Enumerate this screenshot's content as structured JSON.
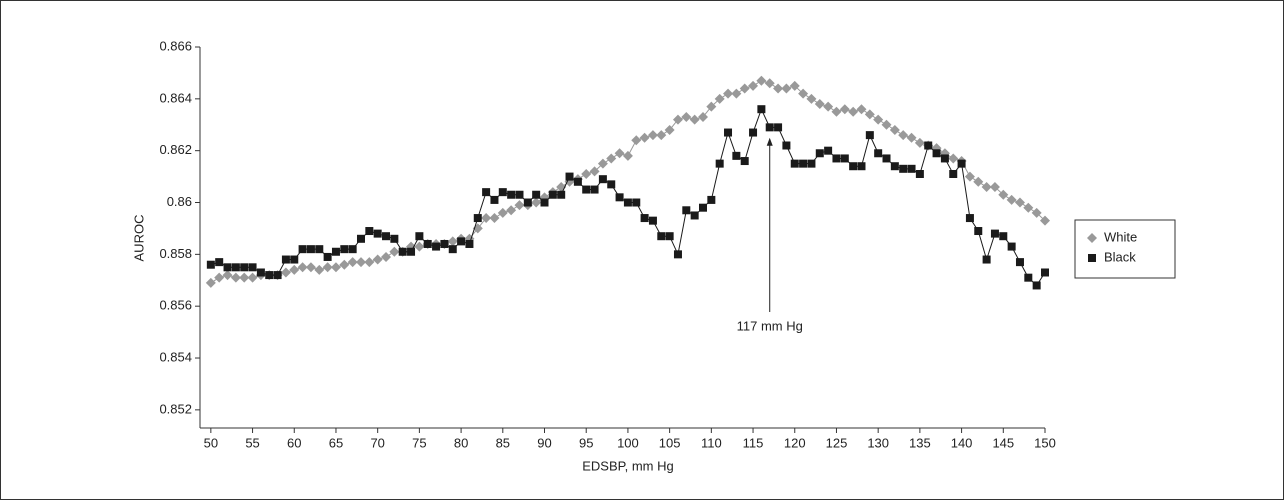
{
  "chart_data": {
    "type": "line",
    "x": [
      50,
      51,
      52,
      53,
      54,
      55,
      56,
      57,
      58,
      59,
      60,
      61,
      62,
      63,
      64,
      65,
      66,
      67,
      68,
      69,
      70,
      71,
      72,
      73,
      74,
      75,
      76,
      77,
      78,
      79,
      80,
      81,
      82,
      83,
      84,
      85,
      86,
      87,
      88,
      89,
      90,
      91,
      92,
      93,
      94,
      95,
      96,
      97,
      98,
      99,
      100,
      101,
      102,
      103,
      104,
      105,
      106,
      107,
      108,
      109,
      110,
      111,
      112,
      113,
      114,
      115,
      116,
      117,
      118,
      119,
      120,
      121,
      122,
      123,
      124,
      125,
      126,
      127,
      128,
      129,
      130,
      131,
      132,
      133,
      134,
      135,
      136,
      137,
      138,
      139,
      140,
      141,
      142,
      143,
      144,
      145,
      146,
      147,
      148,
      149,
      150
    ],
    "series": [
      {
        "name": "White",
        "color": "#999999",
        "marker": "diamond",
        "values": [
          0.8569,
          0.8571,
          0.8572,
          0.8571,
          0.8571,
          0.8571,
          0.8572,
          0.8572,
          0.8572,
          0.8573,
          0.8574,
          0.8575,
          0.8575,
          0.8574,
          0.8575,
          0.8575,
          0.8576,
          0.8577,
          0.8577,
          0.8577,
          0.8578,
          0.8579,
          0.8581,
          0.8581,
          0.8583,
          0.8583,
          0.8584,
          0.8584,
          0.8584,
          0.8585,
          0.8586,
          0.8586,
          0.859,
          0.8594,
          0.8594,
          0.8596,
          0.8597,
          0.8599,
          0.8599,
          0.86,
          0.8602,
          0.8604,
          0.8606,
          0.8608,
          0.8609,
          0.8611,
          0.8612,
          0.8615,
          0.8617,
          0.8619,
          0.8618,
          0.8624,
          0.8625,
          0.8626,
          0.8626,
          0.8628,
          0.8632,
          0.8633,
          0.8632,
          0.8633,
          0.8637,
          0.864,
          0.8642,
          0.8642,
          0.8644,
          0.8645,
          0.8647,
          0.8646,
          0.8644,
          0.8644,
          0.8645,
          0.8642,
          0.864,
          0.8638,
          0.8637,
          0.8635,
          0.8636,
          0.8635,
          0.8636,
          0.8634,
          0.8632,
          0.863,
          0.8628,
          0.8626,
          0.8625,
          0.8623,
          0.8622,
          0.8621,
          0.8619,
          0.8617,
          0.8616,
          0.861,
          0.8608,
          0.8606,
          0.8606,
          0.8603,
          0.8601,
          0.86,
          0.8598,
          0.8596,
          0.8593
        ]
      },
      {
        "name": "Black",
        "color": "#1a1a1a",
        "marker": "square",
        "values": [
          0.8576,
          0.8577,
          0.8575,
          0.8575,
          0.8575,
          0.8575,
          0.8573,
          0.8572,
          0.8572,
          0.8578,
          0.8578,
          0.8582,
          0.8582,
          0.8582,
          0.8579,
          0.8581,
          0.8582,
          0.8582,
          0.8586,
          0.8589,
          0.8588,
          0.8587,
          0.8586,
          0.8581,
          0.8581,
          0.8587,
          0.8584,
          0.8583,
          0.8584,
          0.8582,
          0.8585,
          0.8584,
          0.8594,
          0.8604,
          0.8601,
          0.8604,
          0.8603,
          0.8603,
          0.86,
          0.8603,
          0.86,
          0.8603,
          0.8603,
          0.861,
          0.8608,
          0.8605,
          0.8605,
          0.8609,
          0.8607,
          0.8602,
          0.86,
          0.86,
          0.8594,
          0.8593,
          0.8587,
          0.8587,
          0.858,
          0.8597,
          0.8595,
          0.8598,
          0.8601,
          0.8615,
          0.8627,
          0.8618,
          0.8616,
          0.8627,
          0.8636,
          0.8629,
          0.8629,
          0.8622,
          0.8615,
          0.8615,
          0.8615,
          0.8619,
          0.862,
          0.8617,
          0.8617,
          0.8614,
          0.8614,
          0.8626,
          0.8619,
          0.8617,
          0.8614,
          0.8613,
          0.8613,
          0.8611,
          0.8622,
          0.8619,
          0.8617,
          0.8611,
          0.8615,
          0.8594,
          0.8589,
          0.8578,
          0.8588,
          0.8587,
          0.8583,
          0.8577,
          0.8571,
          0.8568,
          0.8573
        ]
      }
    ],
    "xlabel": "EDSBP, mm Hg",
    "ylabel": "AUROC",
    "xlim": [
      48.7,
      150
    ],
    "ylim": [
      0.8513,
      0.866
    ],
    "xticks": [
      50,
      55,
      60,
      65,
      70,
      75,
      80,
      85,
      90,
      95,
      100,
      105,
      110,
      115,
      120,
      125,
      130,
      135,
      140,
      145,
      150
    ],
    "yticks": [
      0.852,
      0.854,
      0.856,
      0.858,
      0.86,
      0.862,
      0.864,
      0.866
    ],
    "legend": "right",
    "annotation": {
      "text": "117 mm Hg",
      "x": 117,
      "y": 0.8625
    }
  }
}
